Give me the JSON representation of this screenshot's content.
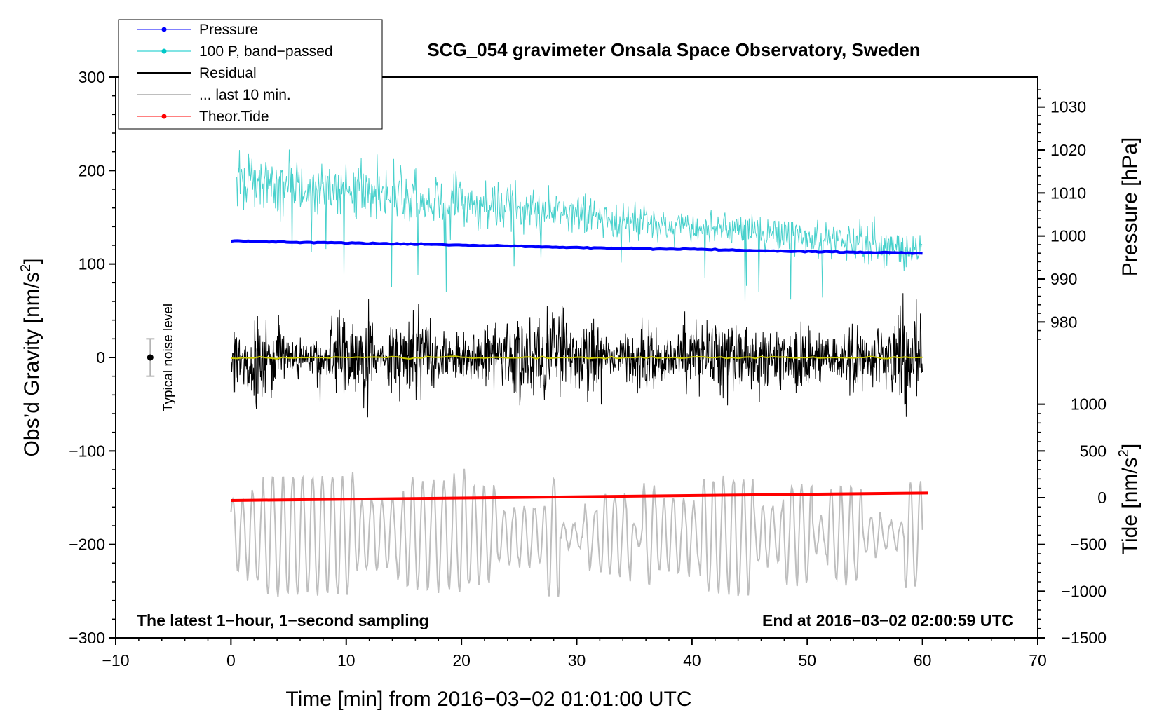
{
  "chart_data": {
    "type": "line",
    "title": "SCG_054 gravimeter Onsala Space Observatory, Sweden",
    "xlabel": "Time [min] from 2016−03−02 01:01:00 UTC",
    "ylabel_left": "Obs’d Gravity [nm/s",
    "ylabel_left_sup": "2",
    "ylabel_left_end": "]",
    "ylabel_right_top": "Pressure [hPa]",
    "ylabel_right_bottom": "Tide [nm/s",
    "ylabel_right_bottom_sup": "2",
    "ylabel_right_bottom_end": "]",
    "xlim": [
      -10,
      70
    ],
    "ylim": [
      -300,
      300
    ],
    "x_ticks": [
      -10,
      0,
      10,
      20,
      30,
      40,
      50,
      60,
      70
    ],
    "x_tick_labels": [
      "−10",
      "0",
      "10",
      "20",
      "30",
      "40",
      "50",
      "60",
      "70"
    ],
    "y_ticks": [
      300,
      200,
      100,
      0,
      -100,
      -200,
      -300
    ],
    "y_tick_labels": [
      "300",
      "200",
      "100",
      "0",
      "−100",
      "−200",
      "−300"
    ],
    "pressure_axis": {
      "ticks": [
        1030,
        1020,
        1010,
        1000,
        990,
        980
      ],
      "tick_labels": [
        "1030",
        "1020",
        "1010",
        "1000",
        "990",
        "980"
      ],
      "gravity_at_1000": 130,
      "gravity_per_hpa": 4.6
    },
    "tide_axis": {
      "ticks": [
        1000,
        500,
        0,
        -500,
        -1000,
        -1500
      ],
      "tick_labels": [
        "1000",
        "500",
        "0",
        "−500",
        "−1000",
        "−1500"
      ],
      "gravity_at_0": -150,
      "gravity_per_unit": 0.1
    },
    "legend": [
      {
        "label": "Pressure",
        "color": "#0000ff",
        "marker": true,
        "width": 1
      },
      {
        "label": "100 P, band−passed",
        "color": "#00c8c8",
        "marker": true,
        "width": 1
      },
      {
        "label": "Residual",
        "color": "#000000",
        "marker": false,
        "width": 2
      },
      {
        "label": "... last 10 min.",
        "color": "#bebebe",
        "marker": false,
        "width": 2
      },
      {
        "label": "Theor.Tide",
        "color": "#ff0000",
        "marker": true,
        "width": 1
      }
    ],
    "series": [
      {
        "name": "Pressure",
        "color": "#0000ff",
        "unit": "hPa",
        "x": [
          0,
          10,
          20,
          30,
          40,
          50,
          60
        ],
        "y": [
          998.8,
          998.4,
          997.9,
          997.3,
          996.9,
          996.4,
          996.0
        ]
      },
      {
        "name": "100 P, band-passed",
        "color": "#48d1cc",
        "unit": "nm/s2",
        "x": [
          0,
          10,
          20,
          30,
          40,
          50,
          60
        ],
        "y_center": [
          190,
          180,
          165,
          155,
          140,
          130,
          115
        ],
        "y_spread": [
          55,
          60,
          55,
          45,
          35,
          35,
          45
        ]
      },
      {
        "name": "Residual",
        "color": "#000000",
        "unit": "nm/s2",
        "x": [
          0,
          60
        ],
        "y_center": [
          0,
          0
        ],
        "y_spread_range": [
          20,
          80
        ]
      },
      {
        "name": "Residual mean",
        "color": "#c8c800",
        "unit": "nm/s2",
        "x": [
          0,
          60
        ],
        "y": [
          0,
          0
        ]
      },
      {
        "name": "... last 10 min.",
        "color": "#bebebe",
        "unit": "nm/s2",
        "x": [
          0,
          60
        ],
        "y_center": [
          -190,
          -190
        ],
        "y_spread_range": [
          20,
          75
        ]
      },
      {
        "name": "Theor.Tide",
        "color": "#ff0000",
        "unit": "nm/s2",
        "x": [
          0,
          60.5
        ],
        "y": [
          -30,
          50
        ]
      }
    ],
    "noise_marker": {
      "label": "Typical noise level",
      "x": -7,
      "y": 0,
      "error": 20
    },
    "annotation_left": "The latest 1−hour, 1−second sampling",
    "annotation_right": "End at 2016−03−02 02:00:59 UTC"
  }
}
